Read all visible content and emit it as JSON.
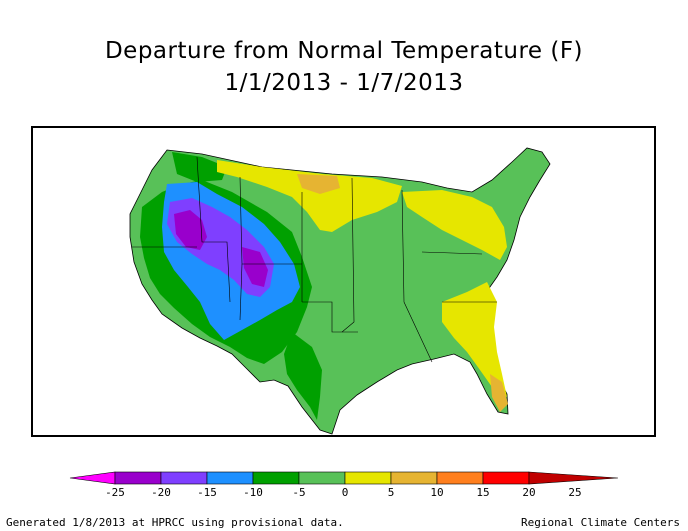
{
  "title_line1": "Departure from Normal Temperature (F)",
  "title_line2": "1/1/2013 - 1/7/2013",
  "legend": {
    "colors": [
      "#ff00ff",
      "#9900cc",
      "#7f3fff",
      "#1e90ff",
      "#00a000",
      "#58c158",
      "#e6e600",
      "#e6b432",
      "#ff7f1e",
      "#ff0000",
      "#c00000"
    ],
    "ticks": [
      "-25",
      "-20",
      "-15",
      "-10",
      "-5",
      "0",
      "5",
      "10",
      "15",
      "20",
      "25"
    ]
  },
  "footer_left": "Generated 1/8/2013 at HPRCC using provisional data.",
  "footer_right": "Regional Climate Centers"
}
